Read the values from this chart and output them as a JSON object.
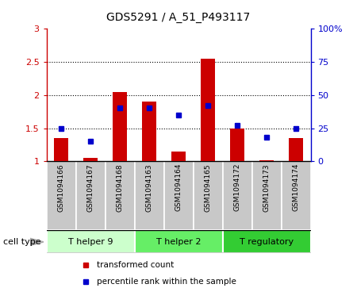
{
  "title": "GDS5291 / A_51_P493117",
  "samples": [
    "GSM1094166",
    "GSM1094167",
    "GSM1094168",
    "GSM1094163",
    "GSM1094164",
    "GSM1094165",
    "GSM1094172",
    "GSM1094173",
    "GSM1094174"
  ],
  "red_bars": [
    1.35,
    1.05,
    2.05,
    1.9,
    1.15,
    2.55,
    1.5,
    1.02,
    1.35
  ],
  "blue_dots_pct": [
    25,
    15,
    40,
    40,
    35,
    42,
    27,
    18,
    25
  ],
  "ylim_left": [
    1.0,
    3.0
  ],
  "ylim_right": [
    0,
    100
  ],
  "yticks_left": [
    1.0,
    1.5,
    2.0,
    2.5,
    3.0
  ],
  "yticks_right": [
    0,
    25,
    50,
    75,
    100
  ],
  "ytick_labels_left": [
    "1",
    "1.5",
    "2",
    "2.5",
    "3"
  ],
  "ytick_labels_right": [
    "0",
    "25",
    "50",
    "75",
    "100%"
  ],
  "group_defs": [
    {
      "label": "T helper 9",
      "start": 0,
      "end": 2,
      "color": "#ccffcc"
    },
    {
      "label": "T helper 2",
      "start": 3,
      "end": 5,
      "color": "#66ee66"
    },
    {
      "label": "T regulatory",
      "start": 6,
      "end": 8,
      "color": "#33cc33"
    }
  ],
  "bar_color": "#cc0000",
  "dot_color": "#0000cc",
  "bg_color": "#ffffff",
  "sample_box_color": "#c8c8c8",
  "bar_width": 0.5,
  "legend_labels": [
    "transformed count",
    "percentile rank within the sample"
  ],
  "cell_type_label": "cell type"
}
